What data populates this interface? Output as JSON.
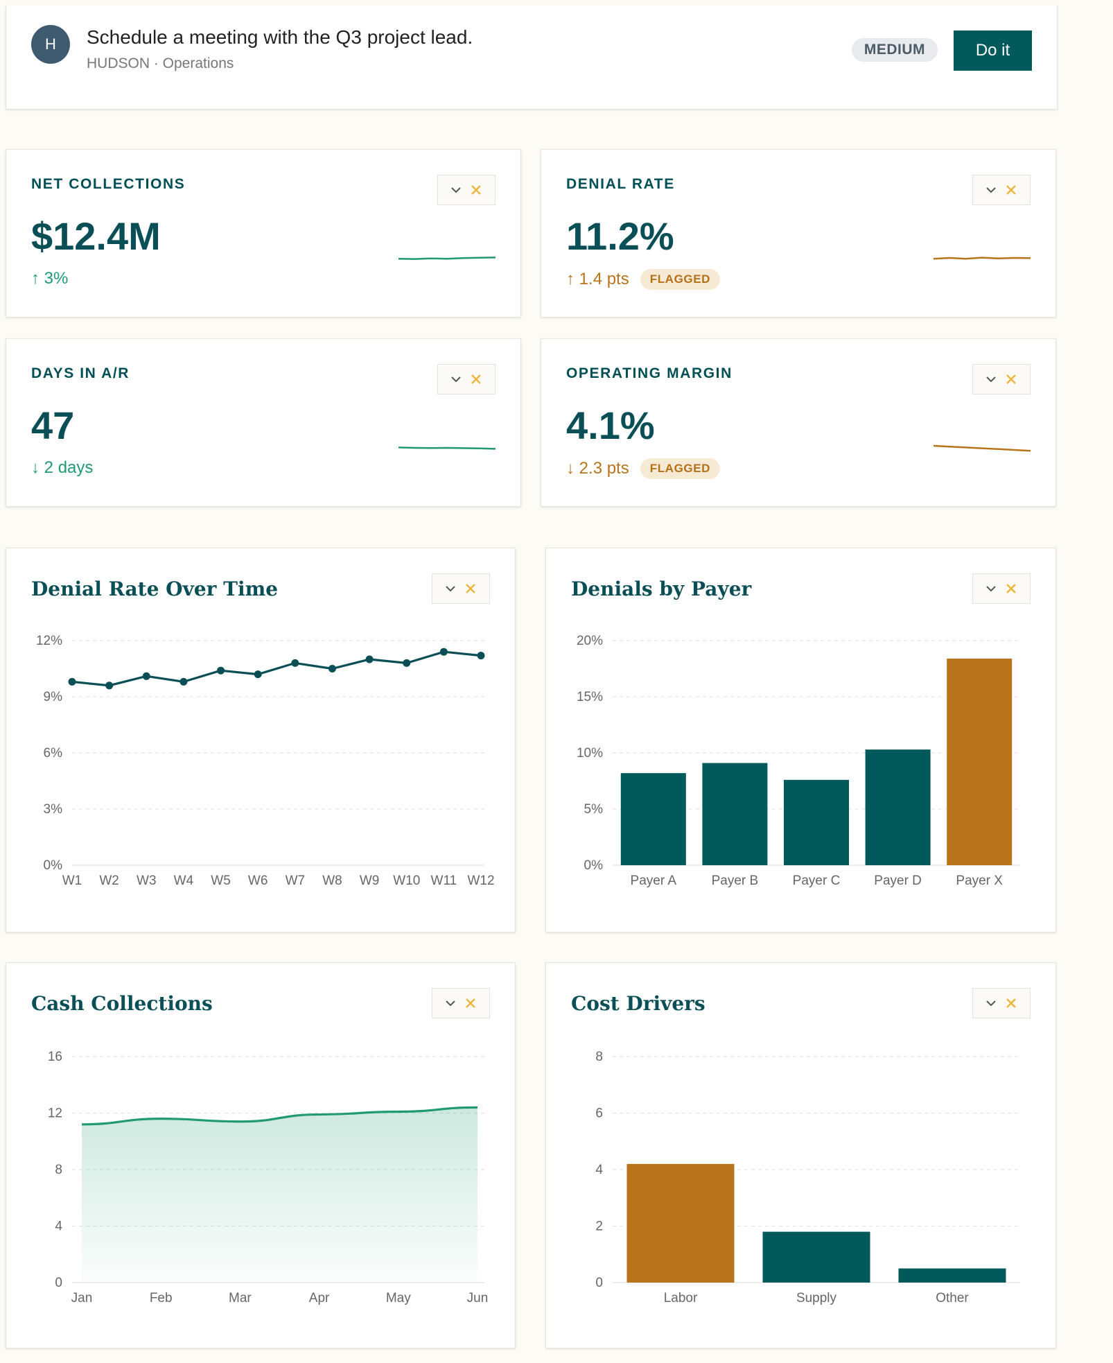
{
  "task": {
    "avatar_initial": "H",
    "title": "Schedule a meeting with the Q3 project lead.",
    "meta": "HUDSON · Operations",
    "priority": "MEDIUM",
    "action_label": "Do it"
  },
  "kpis": [
    {
      "label": "NET COLLECTIONS",
      "value": "$12.4M",
      "delta_arrow": "↑",
      "delta": "3%",
      "status": "good",
      "flag": "",
      "spark": [
        0.46,
        0.48,
        0.44,
        0.46,
        0.41,
        0.39,
        0.37
      ],
      "spark_color": "#1f9a72"
    },
    {
      "label": "DENIAL RATE",
      "value": "11.2%",
      "delta_arrow": "↑",
      "delta": "1.4 pts",
      "status": "bad",
      "flag": "FLAGGED",
      "spark": [
        0.46,
        0.4,
        0.46,
        0.38,
        0.44,
        0.4,
        0.42
      ],
      "spark_color": "#b8741a"
    },
    {
      "label": "DAYS IN A/R",
      "value": "47",
      "delta_arrow": "↓",
      "delta": "2 days",
      "status": "good",
      "flag": "",
      "spark": [
        0.42,
        0.45,
        0.46,
        0.45,
        0.47,
        0.49,
        0.52
      ],
      "spark_color": "#1f9a72"
    },
    {
      "label": "OPERATING MARGIN",
      "value": "4.1%",
      "delta_arrow": "↓",
      "delta": "2.3 pts",
      "status": "bad",
      "flag": "FLAGGED",
      "spark": [
        0.3,
        0.36,
        0.42,
        0.48,
        0.54,
        0.6,
        0.66
      ],
      "spark_color": "#b8741a"
    }
  ],
  "colors": {
    "primary": "#005a5b",
    "accent": "#b8741a",
    "good": "#1f9a72"
  },
  "icons": {
    "collapse": "chevron-down-icon",
    "close": "close-icon"
  },
  "charts": {
    "denial_time": {
      "title": "Denial Rate Over Time"
    },
    "by_payer": {
      "title": "Denials by Payer"
    },
    "cash": {
      "title": "Cash Collections"
    },
    "cost": {
      "title": "Cost Drivers"
    }
  },
  "chart_data": [
    {
      "type": "line",
      "title": "Denial Rate Over Time",
      "x": [
        "W1",
        "W2",
        "W3",
        "W4",
        "W5",
        "W6",
        "W7",
        "W8",
        "W9",
        "W10",
        "W11",
        "W12"
      ],
      "series": [
        {
          "values": [
            9.8,
            9.6,
            10.1,
            9.8,
            10.4,
            10.2,
            10.8,
            10.5,
            11.0,
            10.8,
            11.4,
            11.2
          ]
        }
      ],
      "yticks": [
        "0%",
        "3%",
        "6%",
        "9%",
        "12%"
      ],
      "ylim": [
        0,
        12
      ],
      "grid": true,
      "color": "#0a4f55"
    },
    {
      "type": "bar",
      "title": "Denials by Payer",
      "categories": [
        "Payer A",
        "Payer B",
        "Payer C",
        "Payer D",
        "Payer X"
      ],
      "values": [
        8.2,
        9.1,
        7.6,
        10.3,
        18.4
      ],
      "highlight": [
        "Payer X"
      ],
      "yticks": [
        "0%",
        "5%",
        "10%",
        "15%",
        "20%"
      ],
      "ylim": [
        0,
        20
      ],
      "grid": true,
      "color": "#005a5b",
      "highlight_color": "#b8741a"
    },
    {
      "type": "area",
      "title": "Cash Collections",
      "x": [
        "Jan",
        "Feb",
        "Mar",
        "Apr",
        "May",
        "Jun"
      ],
      "series": [
        {
          "values": [
            11.2,
            11.6,
            11.4,
            11.9,
            12.1,
            12.4
          ]
        }
      ],
      "yticks": [
        "0",
        "4",
        "8",
        "12",
        "16"
      ],
      "ylim": [
        0,
        16
      ],
      "grid": true,
      "color": "#1f9a72"
    },
    {
      "type": "bar",
      "title": "Cost Drivers",
      "categories": [
        "Labor",
        "Supply",
        "Other"
      ],
      "values": [
        4.2,
        1.8,
        0.5
      ],
      "highlight": [
        "Labor"
      ],
      "yticks": [
        "0",
        "2",
        "4",
        "6",
        "8"
      ],
      "ylim": [
        0,
        8
      ],
      "grid": true,
      "color": "#005a5b",
      "highlight_color": "#b8741a"
    }
  ]
}
